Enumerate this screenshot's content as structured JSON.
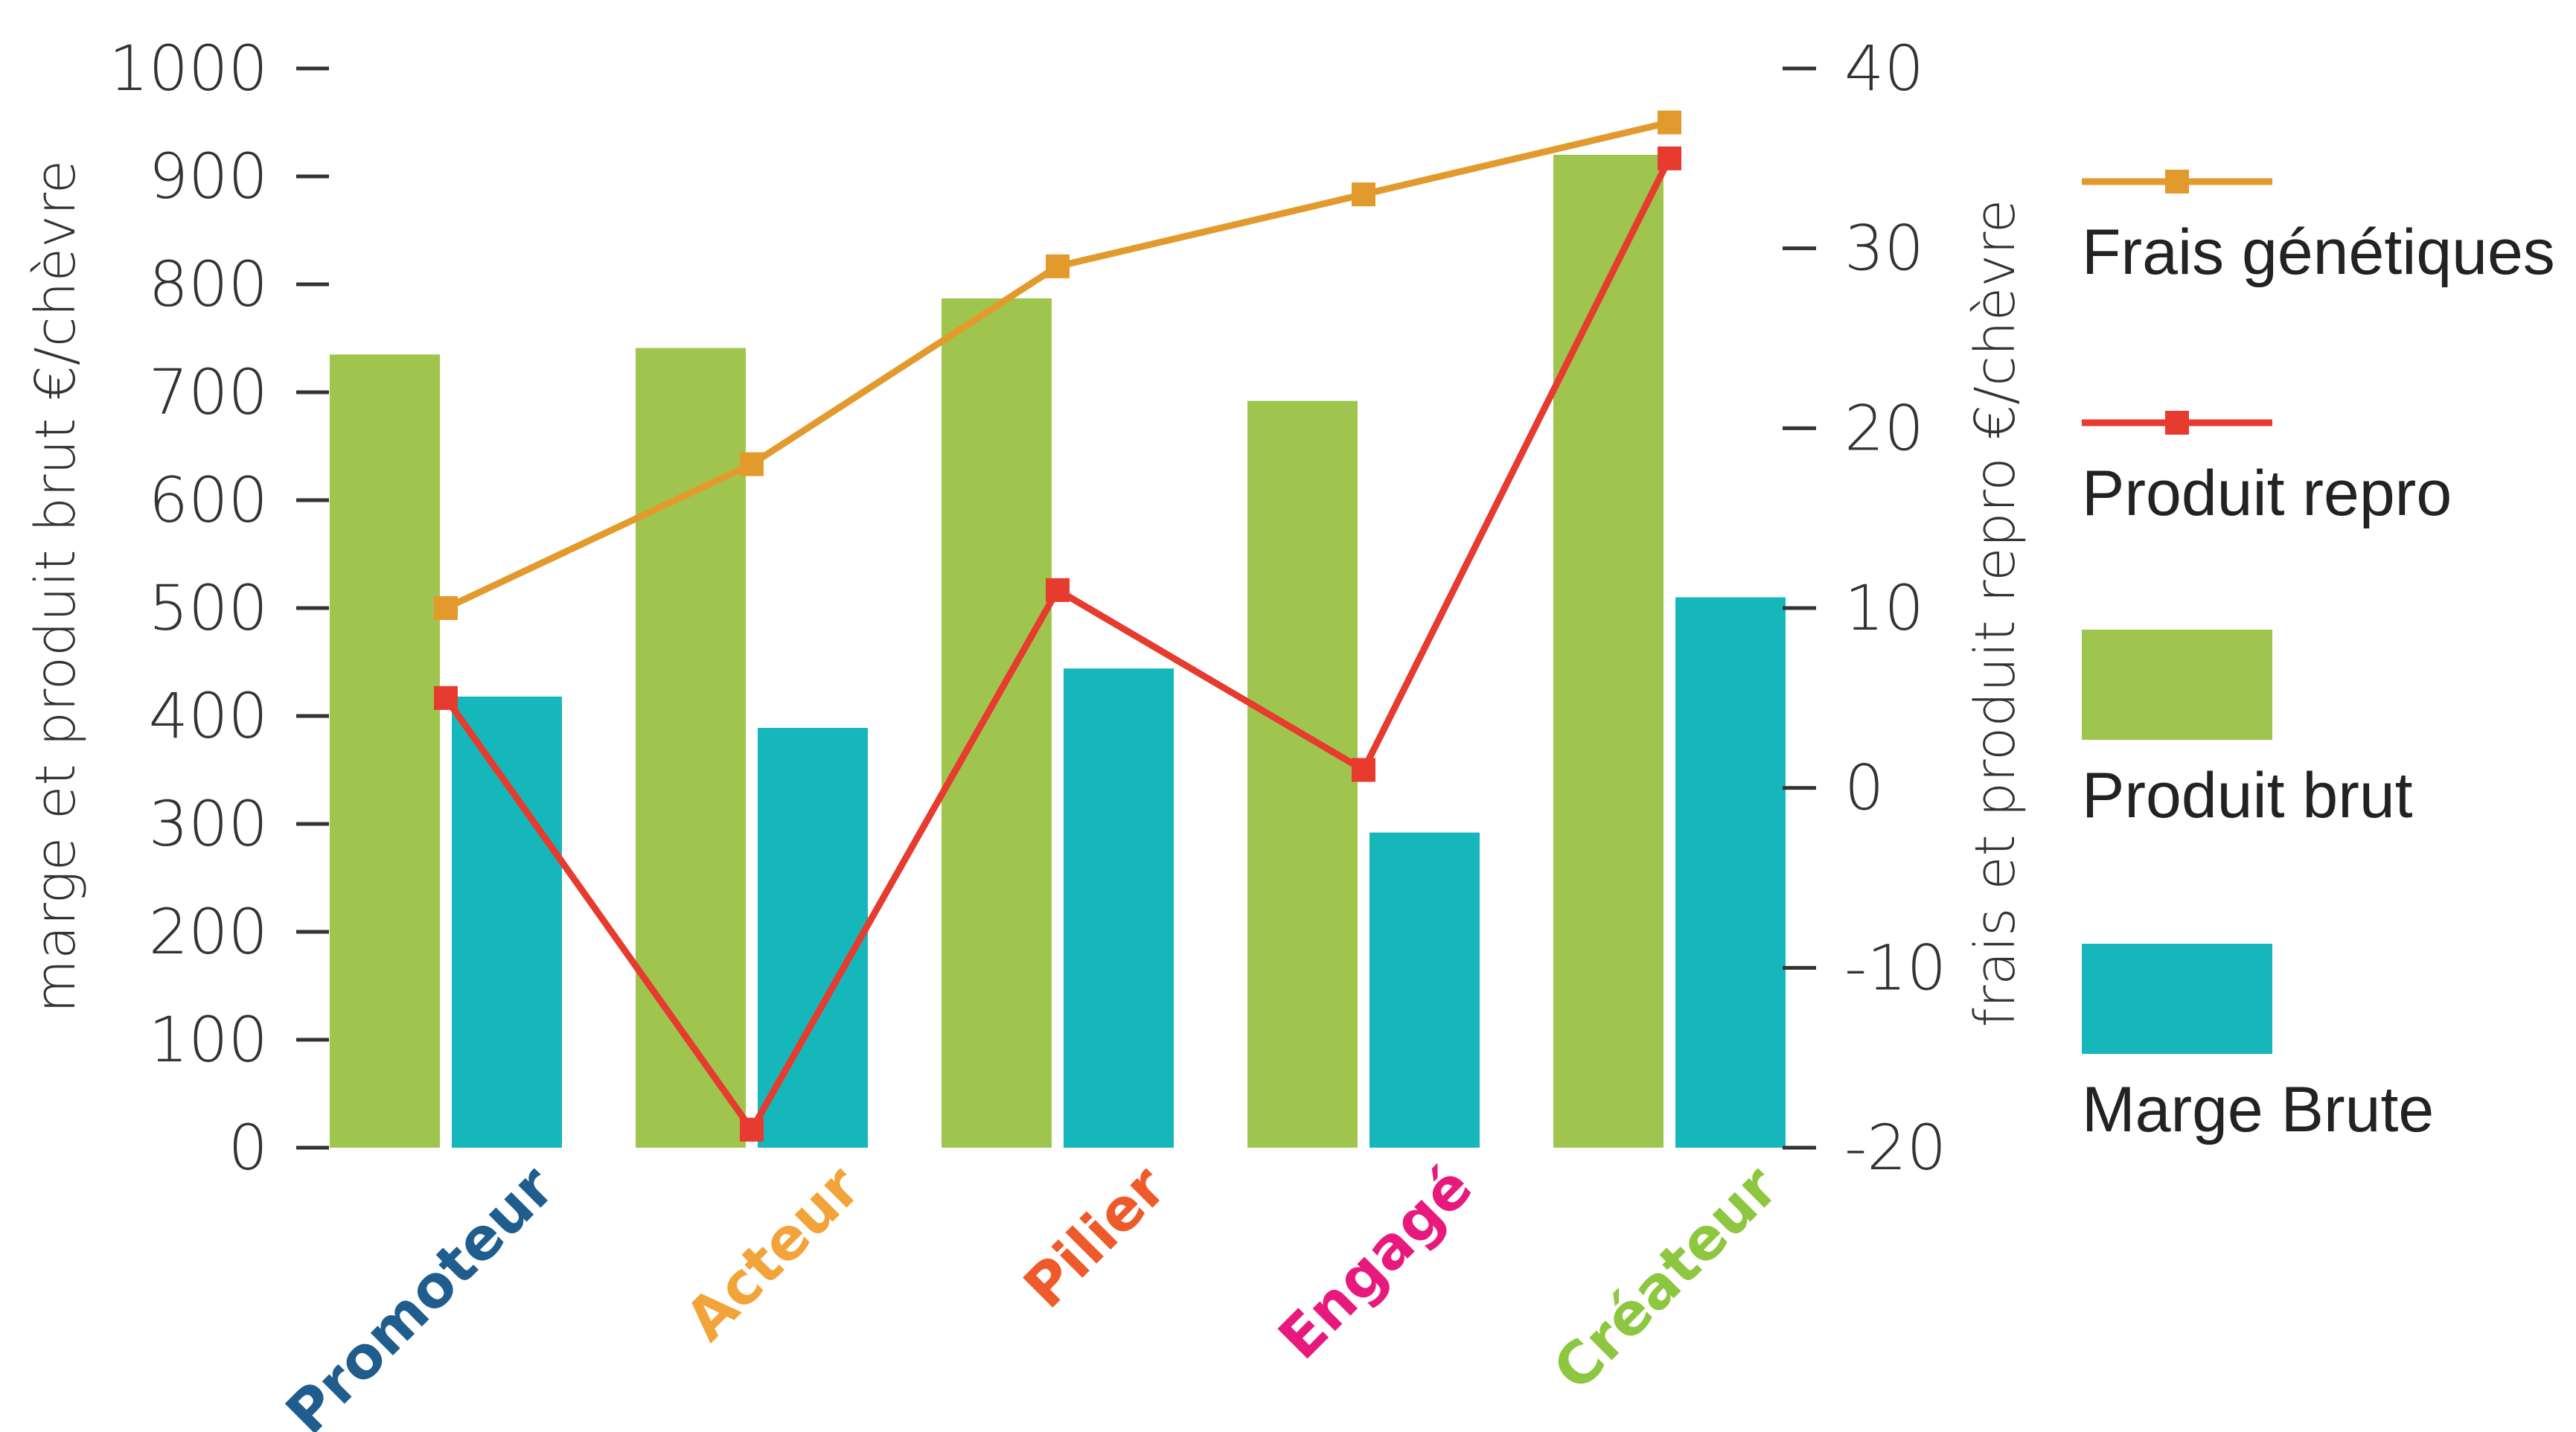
{
  "chart_data": {
    "type": "bar",
    "categories": [
      "Promoteur",
      "Acteur",
      "Pilier",
      "Engagé",
      "Créateur"
    ],
    "category_colors": [
      "#1f5d8e",
      "#f2a43a",
      "#ef5a2a",
      "#e8197d",
      "#8dc63f"
    ],
    "bar_series": [
      {
        "name": "Produit brut",
        "color": "#9fc54e",
        "values": [
          735,
          741,
          787,
          692,
          920
        ]
      },
      {
        "name": "Marge Brute",
        "color": "#15b7bb",
        "values": [
          418,
          389,
          444,
          292,
          510
        ]
      }
    ],
    "line_series": [
      {
        "name": "Frais génétiques",
        "color": "#e39a2d",
        "values": [
          10,
          18,
          29,
          33,
          37
        ]
      },
      {
        "name": "Produit repro",
        "color": "#e63b2e",
        "values": [
          5,
          -19,
          11,
          1,
          35
        ]
      }
    ],
    "ylabel": "marge et produit brut €/chèvre",
    "ylim": [
      0,
      1000
    ],
    "yticks": [
      "0",
      "100",
      "200",
      "300",
      "400",
      "500",
      "600",
      "700",
      "800",
      "900",
      "1000"
    ],
    "y2label": "frais et produit repro €/chèvre",
    "y2lim": [
      -20,
      40
    ],
    "y2ticks": [
      "-20",
      "-10",
      "0",
      "10",
      "20",
      "30",
      "40"
    ],
    "legend": [
      "Frais génétiques",
      "Produit repro",
      "Produit brut",
      "Marge Brute"
    ],
    "legend_position": "right"
  }
}
